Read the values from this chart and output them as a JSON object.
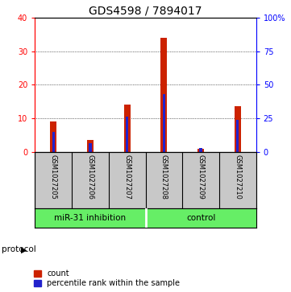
{
  "title": "GDS4598 / 7894017",
  "samples": [
    "GSM1027205",
    "GSM1027206",
    "GSM1027207",
    "GSM1027208",
    "GSM1027209",
    "GSM1027210"
  ],
  "counts": [
    9.0,
    3.5,
    14.0,
    34.0,
    1.0,
    13.5
  ],
  "percentiles": [
    15.0,
    6.5,
    26.0,
    43.0,
    3.0,
    24.0
  ],
  "bar_color_red": "#CC2200",
  "bar_color_blue": "#2222CC",
  "left_ylim": [
    0,
    40
  ],
  "right_ylim": [
    0,
    100
  ],
  "left_yticks": [
    0,
    10,
    20,
    30,
    40
  ],
  "right_yticks": [
    0,
    25,
    50,
    75,
    100
  ],
  "right_yticklabels": [
    "0",
    "25",
    "50",
    "75",
    "100%"
  ],
  "bg_color": "#FFFFFF",
  "plot_bg_color": "#FFFFFF",
  "label_area_color": "#C8C8C8",
  "group_label_color": "#66EE66",
  "grid_color": "#000000",
  "title_fontsize": 10,
  "tick_fontsize": 7,
  "legend_fontsize": 7,
  "red_bar_width": 0.18,
  "blue_bar_width": 0.07,
  "group_boundary": 2.5,
  "miR_label": "miR-31 inhibition",
  "ctrl_label": "control",
  "protocol_text": "protocol"
}
